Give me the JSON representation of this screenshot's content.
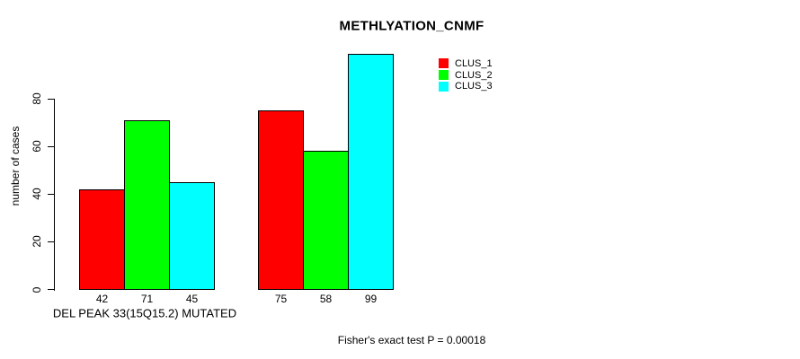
{
  "chart_data": {
    "type": "bar",
    "title": "METHLYATION_CNMF",
    "ylabel": "number of cases",
    "xlabel": "DEL PEAK 33(15Q15.2) MUTATED",
    "categories": [
      "DEL PEAK 33(15Q15.2) MUTATED",
      ""
    ],
    "series": [
      {
        "name": "CLUS_1",
        "color": "#ff0000",
        "values": [
          42,
          75
        ]
      },
      {
        "name": "CLUS_2",
        "color": "#00ff00",
        "values": [
          71,
          58
        ]
      },
      {
        "name": "CLUS_3",
        "color": "#00ffff",
        "values": [
          45,
          99
        ]
      }
    ],
    "yticks": [
      0,
      20,
      40,
      60,
      80
    ],
    "ylim": [
      0,
      80
    ],
    "bar_value_labels_shown": true,
    "grid": false,
    "legend_position": "top-right",
    "footnote": "Fisher's exact test P = 0.00018"
  },
  "colors": {
    "background": "#ffffff",
    "axis": "#000000",
    "text": "#000000"
  }
}
